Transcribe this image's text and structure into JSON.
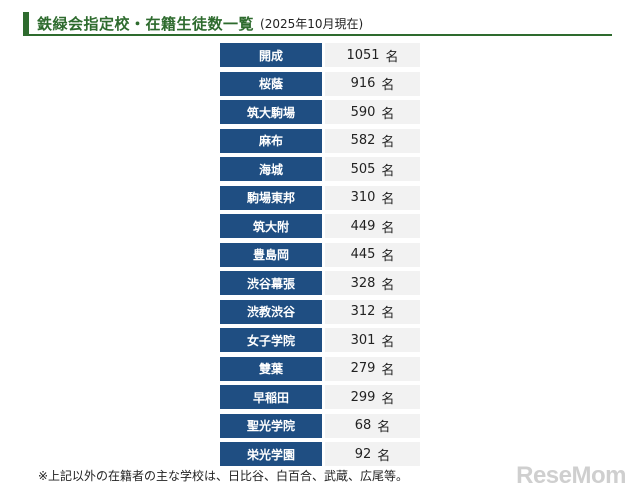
{
  "header": {
    "title": "鉄緑会指定校・在籍生徒数一覧",
    "subtitle": "(2025年10月現在)",
    "accent_color": "#2e6b2e"
  },
  "table": {
    "unit": "名",
    "name_bg_color": "#1f4e82",
    "rows": [
      {
        "school": "開成",
        "count": "1051"
      },
      {
        "school": "桜蔭",
        "count": "916"
      },
      {
        "school": "筑大駒場",
        "count": "590"
      },
      {
        "school": "麻布",
        "count": "582"
      },
      {
        "school": "海城",
        "count": "505"
      },
      {
        "school": "駒場東邦",
        "count": "310"
      },
      {
        "school": "筑大附",
        "count": "449"
      },
      {
        "school": "豊島岡",
        "count": "445"
      },
      {
        "school": "渋谷幕張",
        "count": "328"
      },
      {
        "school": "渋教渋谷",
        "count": "312"
      },
      {
        "school": "女子学院",
        "count": "301"
      },
      {
        "school": "雙葉",
        "count": "279"
      },
      {
        "school": "早稲田",
        "count": "299"
      },
      {
        "school": "聖光学院",
        "count": "68"
      },
      {
        "school": "栄光学園",
        "count": "92"
      }
    ]
  },
  "footnote": "※上記以外の在籍者の主な学校は、日比谷、白百合、武蔵、広尾等。",
  "logo": "ReseMom"
}
